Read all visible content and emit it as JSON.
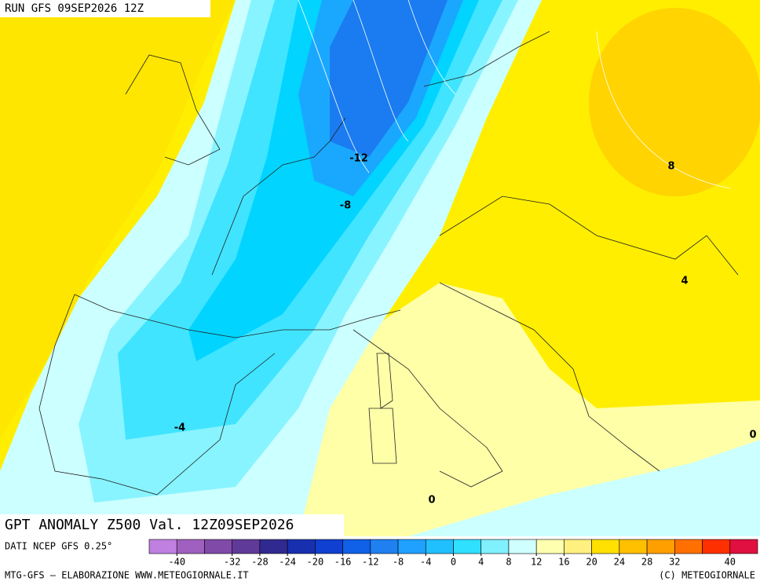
{
  "header": {
    "run": "RUN GFS 09SEP2026 12Z"
  },
  "map": {
    "title": "GPT ANOMALY Z500 Val. 12Z09SEP2026",
    "contour_labels": [
      -12,
      -8,
      8,
      4,
      -4,
      0,
      0
    ]
  },
  "colorbar": {
    "source": "DATI NCEP GFS 0.25°",
    "lim": [
      -44,
      44
    ],
    "ticks": [
      -40,
      -32,
      -28,
      -24,
      -20,
      -16,
      -12,
      -8,
      -4,
      0,
      4,
      8,
      12,
      16,
      20,
      24,
      28,
      32,
      40
    ],
    "colors": [
      "#c080e0",
      "#a060c0",
      "#804aa8",
      "#603a98",
      "#302a90",
      "#1830b0",
      "#1040d0",
      "#1060e8",
      "#2080f0",
      "#20a0ff",
      "#20c0ff",
      "#30e0ff",
      "#80f0ff",
      "#d0ffff",
      "#ffffb0",
      "#fff080",
      "#ffe000",
      "#ffc000",
      "#ffa000",
      "#ff7000",
      "#ff3000",
      "#e01040"
    ]
  },
  "footer": {
    "left": "MTG-GFS — ELABORAZIONE WWW.METEOGIORNALE.IT",
    "right": "(C) METEOGIORNALE"
  }
}
